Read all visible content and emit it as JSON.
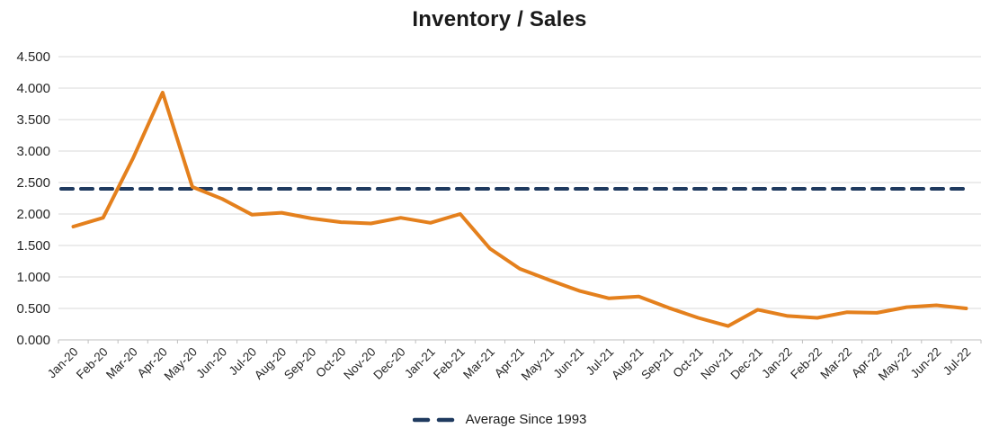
{
  "chart_data": {
    "type": "line",
    "title": "Inventory / Sales",
    "categories": [
      "Jan-20",
      "Feb-20",
      "Mar-20",
      "Apr-20",
      "May-20",
      "Jun-20",
      "Jul-20",
      "Aug-20",
      "Sep-20",
      "Oct-20",
      "Nov-20",
      "Dec-20",
      "Jan-21",
      "Feb-21",
      "Mar-21",
      "Apr-21",
      "May-21",
      "Jun-21",
      "Jul-21",
      "Aug-21",
      "Sep-21",
      "Oct-21",
      "Nov-21",
      "Dec-21",
      "Jan-22",
      "Feb-22",
      "Mar-22",
      "Apr-22",
      "May-22",
      "Jun-22",
      "Jul-22"
    ],
    "series": [
      {
        "name": "Inventory / Sales",
        "style": "solid",
        "color": "#e4801d",
        "values": [
          1.8,
          1.94,
          2.88,
          3.93,
          2.43,
          2.24,
          1.99,
          2.02,
          1.93,
          1.87,
          1.85,
          1.94,
          1.86,
          2.0,
          1.45,
          1.13,
          0.95,
          0.78,
          0.66,
          0.69,
          0.51,
          0.35,
          0.22,
          0.48,
          0.38,
          0.35,
          0.44,
          0.43,
          0.52,
          0.55,
          0.5
        ]
      },
      {
        "name": "Average Since 1993",
        "style": "dashed",
        "color": "#1f3a5f",
        "constant": 2.4
      }
    ],
    "ylim": [
      0,
      4.5
    ],
    "ytick_step": 0.5,
    "ytick_labels": [
      "0.000",
      "0.500",
      "1.000",
      "1.500",
      "2.000",
      "2.500",
      "3.000",
      "3.500",
      "4.000",
      "4.500"
    ],
    "grid": "horizontal",
    "gridline_color": "#d9d9d9",
    "axis_color": "#bfbfbf",
    "legend_position": "bottom-center"
  },
  "legend": {
    "label": "Average Since 1993"
  }
}
